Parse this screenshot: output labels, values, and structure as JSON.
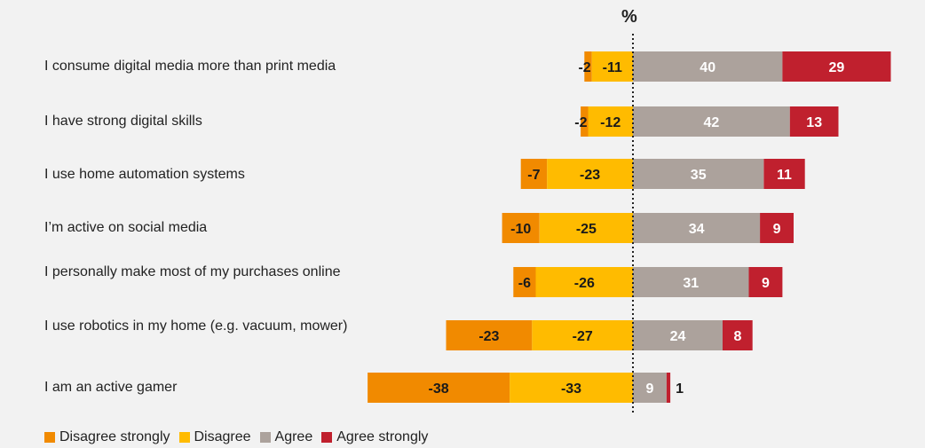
{
  "chart_data": {
    "type": "bar",
    "unit_label": "%",
    "categories": [
      "I consume digital media more than print media",
      "I have strong digital skills",
      "I use home automation systems",
      "I’m active on social media",
      "I personally make most of my purchases online",
      "I use robotics in my home (e.g. vacuum, mower)",
      "I am an active gamer"
    ],
    "series": [
      {
        "name": "Disagree strongly",
        "color": "#f18a00",
        "values": [
          -2,
          -2,
          -7,
          -10,
          -6,
          -23,
          -38
        ]
      },
      {
        "name": "Disagree",
        "color": "#ffbb00",
        "values": [
          -11,
          -12,
          -23,
          -25,
          -26,
          -27,
          -33
        ]
      },
      {
        "name": "Agree",
        "color": "#aca29c",
        "values": [
          40,
          42,
          35,
          34,
          31,
          24,
          9
        ]
      },
      {
        "name": "Agree strongly",
        "color": "#c0202e",
        "values": [
          29,
          13,
          11,
          9,
          9,
          8,
          1
        ]
      }
    ],
    "legend_position": "bottom-left",
    "grid": false
  }
}
